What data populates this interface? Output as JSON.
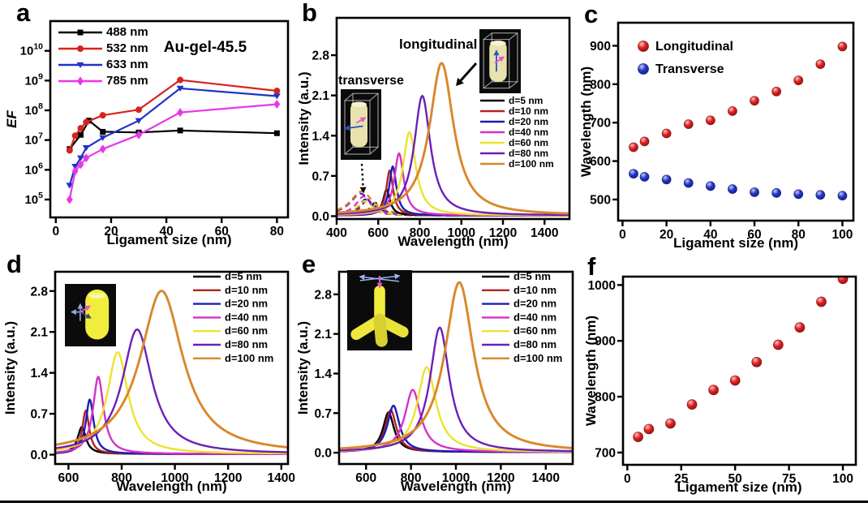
{
  "chart_data": [
    {
      "id": "a",
      "label": "a",
      "type": "line",
      "title": "Au-gel-45.5",
      "xlabel": "Ligament size (nm)",
      "ylabel": "EF",
      "xlim": [
        -2,
        84
      ],
      "x_ticks": [
        0,
        20,
        40,
        60,
        80
      ],
      "ylog": true,
      "y_tick_exponents": [
        5,
        6,
        7,
        8,
        9,
        10
      ],
      "ylim_exponents": [
        4.4,
        11.0
      ],
      "legend_position": "top-left",
      "series": [
        {
          "name": "488 nm",
          "color": "#000000",
          "marker": "square",
          "x": [
            5,
            9,
            12,
            17,
            30,
            45,
            80
          ],
          "y": [
            5000000.0,
            15000000.0,
            45000000.0,
            19000000.0,
            18000000.0,
            21000000.0,
            17000000.0
          ]
        },
        {
          "name": "532 nm",
          "color": "#d6231e",
          "marker": "circle",
          "x": [
            5,
            7,
            9,
            11,
            17,
            30,
            45,
            80
          ],
          "y": [
            4500000.0,
            14000000.0,
            25000000.0,
            40000000.0,
            68000000.0,
            105000000.0,
            1050000000.0,
            450000000.0
          ]
        },
        {
          "name": "633 nm",
          "color": "#2132c8",
          "marker": "triangle-down",
          "x": [
            5,
            7,
            9,
            11,
            17,
            30,
            45,
            80
          ],
          "y": [
            300000.0,
            1300000.0,
            2500000.0,
            5500000.0,
            12000000.0,
            45000000.0,
            550000000.0,
            300000000.0
          ]
        },
        {
          "name": "785 nm",
          "color": "#e837e8",
          "marker": "diamond",
          "x": [
            5,
            7,
            9,
            11,
            17,
            30,
            45,
            80
          ],
          "y": [
            100000.0,
            900000.0,
            1500000.0,
            2500000.0,
            5000000.0,
            15000000.0,
            85000000.0,
            160000000.0
          ]
        }
      ]
    },
    {
      "id": "b",
      "label": "b",
      "type": "spectra",
      "xlabel": "Wavelength (nm)",
      "ylabel": "Intensity (a.u.)",
      "xlim": [
        400,
        1520
      ],
      "x_ticks": [
        400,
        600,
        800,
        1000,
        1200,
        1400
      ],
      "ylim": [
        -0.05,
        3.45
      ],
      "y_ticks": [
        0.0,
        0.7,
        1.4,
        2.1,
        2.8
      ],
      "annotations": {
        "transverse": "transverse",
        "longitudinal": "longitudinal"
      },
      "series": [
        {
          "name": "d=5 nm",
          "color": "#000000",
          "peak_nm": 640,
          "peak_intensity": 0.45,
          "fwhm_nm": 40
        },
        {
          "name": "d=10 nm",
          "color": "#b22222",
          "peak_nm": 655,
          "peak_intensity": 0.78,
          "fwhm_nm": 40
        },
        {
          "name": "d=20 nm",
          "color": "#1c1cb4",
          "peak_nm": 670,
          "peak_intensity": 0.85,
          "fwhm_nm": 42
        },
        {
          "name": "d=40 nm",
          "color": "#d431c9",
          "peak_nm": 700,
          "peak_intensity": 1.08,
          "fwhm_nm": 55
        },
        {
          "name": "d=60 nm",
          "color": "#ece32d",
          "peak_nm": 750,
          "peak_intensity": 1.45,
          "fwhm_nm": 75
        },
        {
          "name": "d=80 nm",
          "color": "#6b1fb8",
          "peak_nm": 812,
          "peak_intensity": 2.08,
          "fwhm_nm": 95
        },
        {
          "name": "d=100 nm",
          "color": "#d98728",
          "peak_nm": 905,
          "peak_intensity": 2.65,
          "fwhm_nm": 140
        }
      ],
      "transverse_series": [
        {
          "name": "d=5 nm",
          "color": "#000000",
          "peak_nm": 585,
          "peak_intensity": 0.22,
          "fwhm_nm": 60
        },
        {
          "name": "d=10 nm",
          "color": "#b22222",
          "peak_nm": 545,
          "peak_intensity": 0.26,
          "fwhm_nm": 70
        },
        {
          "name": "d=20 nm",
          "color": "#1c1cb4",
          "peak_nm": 540,
          "peak_intensity": 0.28,
          "fwhm_nm": 80
        },
        {
          "name": "d=40 nm",
          "color": "#d431c9",
          "peak_nm": 530,
          "peak_intensity": 0.33,
          "fwhm_nm": 90
        },
        {
          "name": "d=60 nm",
          "color": "#ece32d",
          "peak_nm": 535,
          "peak_intensity": 0.25,
          "fwhm_nm": 90
        },
        {
          "name": "d=80 nm",
          "color": "#6b1fb8",
          "peak_nm": 515,
          "peak_intensity": 0.38,
          "fwhm_nm": 120
        },
        {
          "name": "d=100 nm",
          "color": "#d98728",
          "peak_nm": 520,
          "peak_intensity": 0.42,
          "fwhm_nm": 130
        }
      ]
    },
    {
      "id": "c",
      "label": "c",
      "type": "scatter",
      "xlabel": "Ligament size (nm)",
      "ylabel": "Wavelength (nm)",
      "xlim": [
        -2,
        105
      ],
      "x_ticks": [
        0,
        20,
        40,
        60,
        80,
        100
      ],
      "ylim": [
        445,
        960
      ],
      "y_ticks": [
        500,
        600,
        700,
        800,
        900
      ],
      "series": [
        {
          "name": "Longitudinal",
          "color": "#e02020",
          "x": [
            5,
            10,
            20,
            30,
            40,
            50,
            60,
            70,
            80,
            90,
            100
          ],
          "y": [
            636,
            651,
            672,
            696,
            706,
            730,
            757,
            781,
            810,
            852,
            898
          ]
        },
        {
          "name": "Transverse",
          "color": "#2337cc",
          "x": [
            5,
            10,
            20,
            30,
            40,
            50,
            60,
            70,
            80,
            90,
            100
          ],
          "y": [
            567,
            559,
            552,
            543,
            535,
            527,
            519,
            517,
            514,
            512,
            510
          ]
        }
      ]
    },
    {
      "id": "d",
      "label": "d",
      "type": "spectra",
      "xlabel": "Wavelength (nm)",
      "ylabel": "Intensity (a.u.)",
      "xlim": [
        550,
        1425
      ],
      "x_ticks": [
        600,
        800,
        1000,
        1200,
        1400
      ],
      "ylim": [
        -0.16,
        3.13
      ],
      "y_ticks": [
        0.0,
        0.7,
        1.4,
        2.1,
        2.8
      ],
      "series": [
        {
          "name": "d=5 nm",
          "color": "#000000",
          "peak_nm": 650,
          "peak_intensity": 0.46,
          "fwhm_nm": 38
        },
        {
          "name": "d=10 nm",
          "color": "#b22222",
          "peak_nm": 665,
          "peak_intensity": 0.74,
          "fwhm_nm": 32
        },
        {
          "name": "d=20 nm",
          "color": "#1c1cb4",
          "peak_nm": 680,
          "peak_intensity": 0.93,
          "fwhm_nm": 36
        },
        {
          "name": "d=40 nm",
          "color": "#d431c9",
          "peak_nm": 712,
          "peak_intensity": 1.32,
          "fwhm_nm": 48
        },
        {
          "name": "d=60 nm",
          "color": "#ece32d",
          "peak_nm": 785,
          "peak_intensity": 1.74,
          "fwhm_nm": 95
        },
        {
          "name": "d=80 nm",
          "color": "#6b1fb8",
          "peak_nm": 858,
          "peak_intensity": 2.13,
          "fwhm_nm": 135
        },
        {
          "name": "d=100 nm",
          "color": "#d98728",
          "peak_nm": 950,
          "peak_intensity": 2.79,
          "fwhm_nm": 195
        }
      ]
    },
    {
      "id": "e",
      "label": "e",
      "type": "spectra",
      "xlabel": "Wavelength (nm)",
      "ylabel": "Intensity (a.u.)",
      "xlim": [
        480,
        1520
      ],
      "x_ticks": [
        600,
        800,
        1000,
        1200,
        1400
      ],
      "ylim": [
        -0.2,
        3.2
      ],
      "y_ticks": [
        0.0,
        0.7,
        1.4,
        2.1,
        2.8
      ],
      "series": [
        {
          "name": "d=5 nm",
          "color": "#000000",
          "peak_nm": 700,
          "peak_intensity": 0.7,
          "fwhm_nm": 60
        },
        {
          "name": "d=10 nm",
          "color": "#b22222",
          "peak_nm": 710,
          "peak_intensity": 0.74,
          "fwhm_nm": 60
        },
        {
          "name": "d=20 nm",
          "color": "#1c1cb4",
          "peak_nm": 722,
          "peak_intensity": 0.82,
          "fwhm_nm": 65
        },
        {
          "name": "d=40 nm",
          "color": "#d431c9",
          "peak_nm": 808,
          "peak_intensity": 1.1,
          "fwhm_nm": 85
        },
        {
          "name": "d=60 nm",
          "color": "#ece32d",
          "peak_nm": 870,
          "peak_intensity": 1.5,
          "fwhm_nm": 100
        },
        {
          "name": "d=80 nm",
          "color": "#6b1fb8",
          "peak_nm": 928,
          "peak_intensity": 2.2,
          "fwhm_nm": 105
        },
        {
          "name": "d=100 nm",
          "color": "#d98728",
          "peak_nm": 1015,
          "peak_intensity": 3.0,
          "fwhm_nm": 155
        }
      ]
    },
    {
      "id": "f",
      "label": "f",
      "type": "scatter",
      "xlabel": "Ligament size (nm)",
      "ylabel": "Wavelength (nm)",
      "xlim": [
        -2,
        106
      ],
      "x_ticks": [
        0,
        25,
        50,
        75,
        100
      ],
      "ylim": [
        678,
        1015
      ],
      "y_ticks": [
        700,
        800,
        900,
        1000
      ],
      "series": [
        {
          "name": "Longitudinal",
          "color": "#e02020",
          "x": [
            5,
            10,
            20,
            30,
            40,
            50,
            60,
            70,
            80,
            90,
            100
          ],
          "y": [
            728,
            742,
            752,
            786,
            812,
            829,
            862,
            893,
            924,
            970,
            1011
          ]
        }
      ]
    }
  ]
}
